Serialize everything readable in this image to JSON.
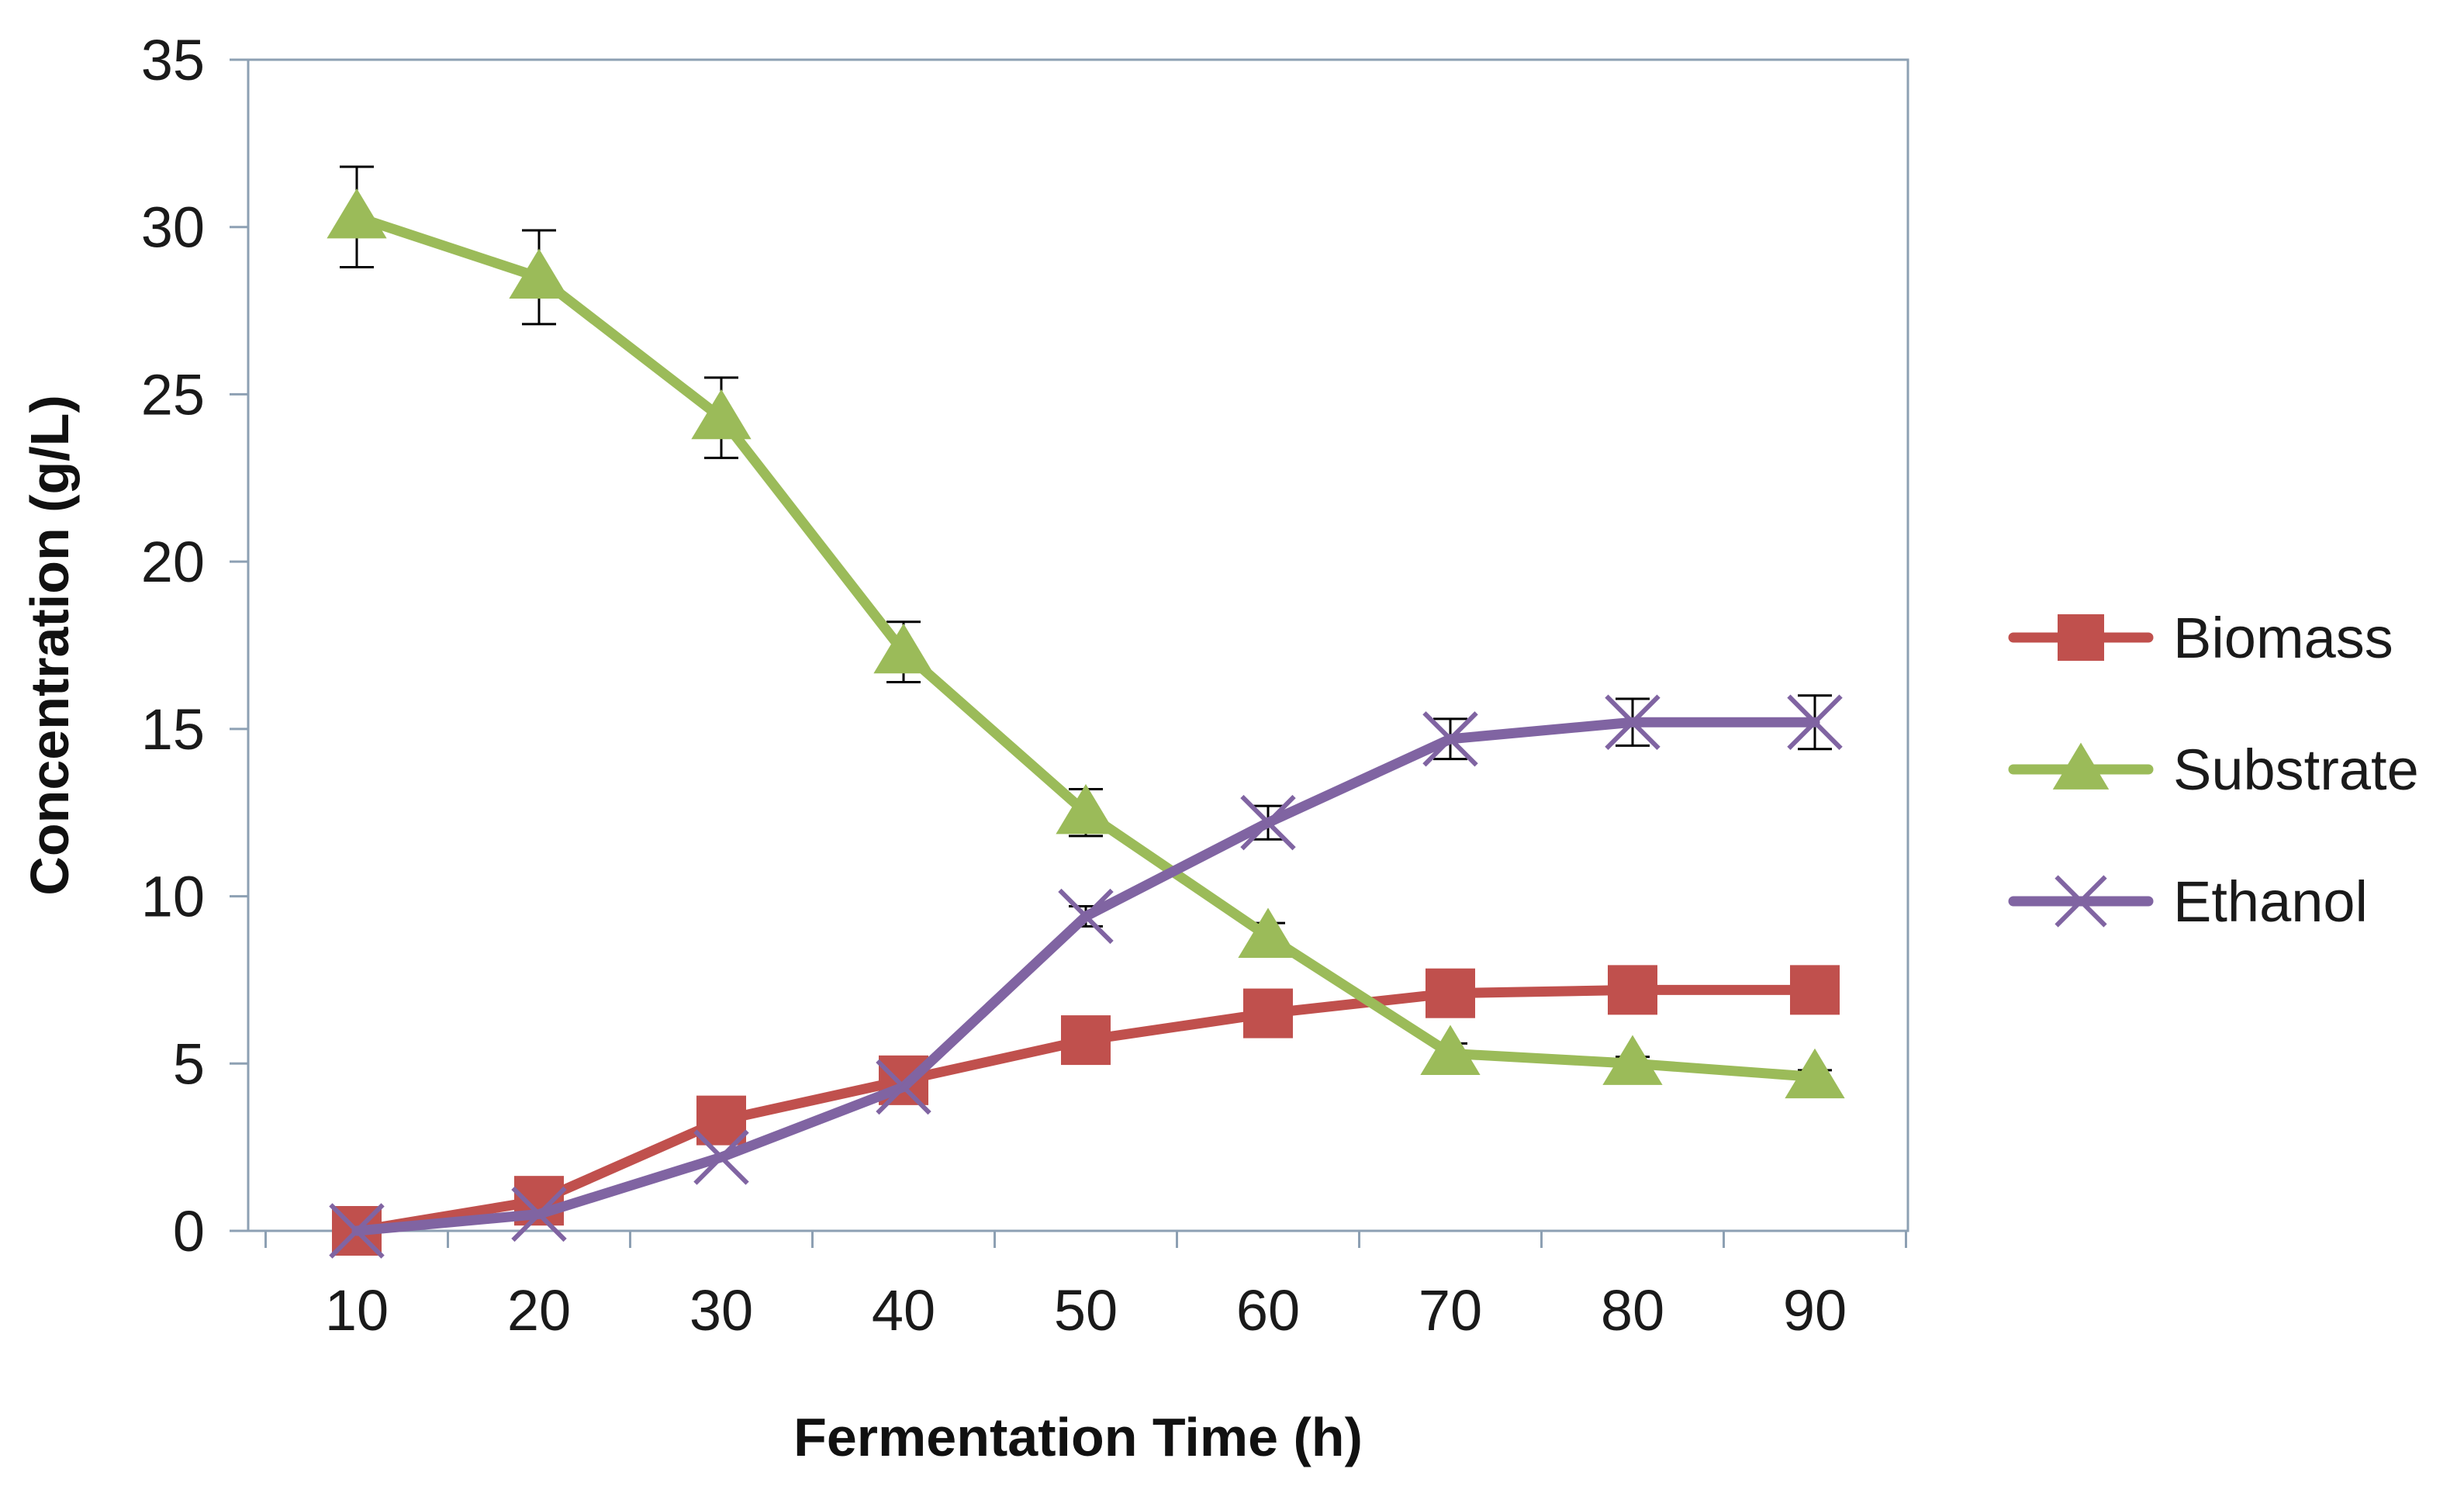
{
  "chart_data": {
    "type": "line",
    "title": "",
    "xlabel": "Fermentation Time (h)",
    "ylabel": "Concentration (g/L)",
    "x": [
      10,
      20,
      30,
      40,
      50,
      60,
      70,
      80,
      90
    ],
    "x_tick_labels": [
      "10",
      "20",
      "30",
      "40",
      "50",
      "60",
      "70",
      "80",
      "90"
    ],
    "ylim": [
      0,
      35
    ],
    "y_ticks": [
      0,
      5,
      10,
      15,
      20,
      25,
      30,
      35
    ],
    "y_tick_labels": [
      "0",
      "5",
      "10",
      "15",
      "20",
      "25",
      "30",
      "35"
    ],
    "grid": false,
    "legend_position": "right",
    "series": [
      {
        "name": "Biomass",
        "color": "#c0504d",
        "marker": "square",
        "values": [
          0.0,
          0.9,
          3.3,
          4.5,
          5.7,
          6.5,
          7.1,
          7.2,
          7.2
        ],
        "errors": [
          0,
          0,
          0,
          0,
          0,
          0,
          0,
          0,
          0
        ]
      },
      {
        "name": "Substrate",
        "color": "#9bbb59",
        "marker": "triangle",
        "values": [
          30.3,
          28.5,
          24.3,
          17.3,
          12.5,
          8.8,
          5.3,
          5.0,
          4.6
        ],
        "errors": [
          1.5,
          1.4,
          1.2,
          0.9,
          0.7,
          0.4,
          0.3,
          0.2,
          0.2
        ]
      },
      {
        "name": "Ethanol",
        "color": "#8064a2",
        "marker": "x",
        "values": [
          0.0,
          0.5,
          2.2,
          4.3,
          9.4,
          12.2,
          14.7,
          15.2,
          15.2
        ],
        "errors": [
          0,
          0,
          0,
          0,
          0.3,
          0.5,
          0.6,
          0.7,
          0.8
        ]
      }
    ]
  }
}
